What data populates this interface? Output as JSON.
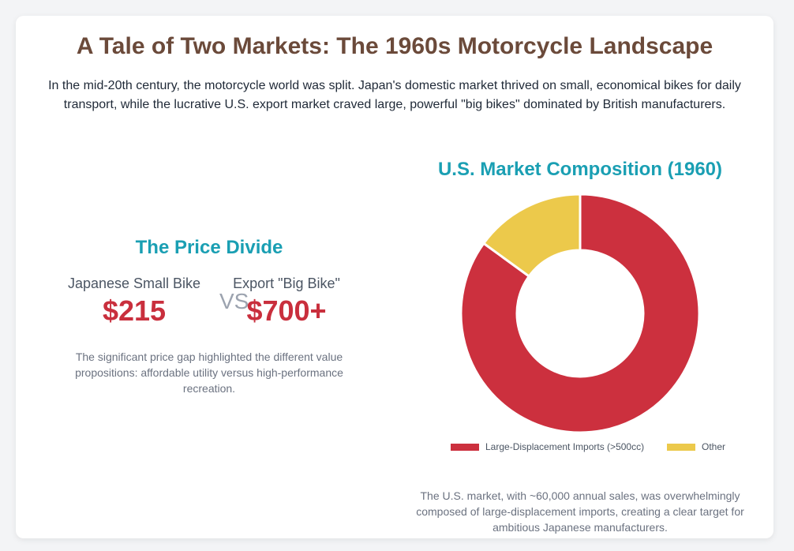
{
  "header": {
    "title": "A Tale of Two Markets: The 1960s Motorcycle Landscape",
    "intro": "In the mid-20th century, the motorcycle world was split. Japan's domestic market thrived on small, economical bikes for daily transport, while the lucrative U.S. export market craved large, powerful \"big bikes\" dominated by British manufacturers."
  },
  "price_divide": {
    "title": "The Price Divide",
    "left_label": "Japanese Small Bike",
    "left_value": "$215",
    "vs": "VS",
    "right_label": "Export \"Big Bike\"",
    "right_value": "$700+",
    "note": "The significant price gap highlighted the different value propositions: affordable utility versus high-performance recreation."
  },
  "market": {
    "note": "The U.S. market, with ~60,000 annual sales, was overwhelmingly composed of large-displacement imports, creating a clear target for ambitious Japanese manufacturers."
  },
  "colors": {
    "accent_title": "#1a9fb3",
    "headline": "#6b4a3a",
    "price": "#c92f3d"
  },
  "chart_data": {
    "type": "pie",
    "variant": "doughnut",
    "title": "U.S. Market Composition (1960)",
    "labels": [
      "Large-Displacement Imports (>500cc)",
      "Other"
    ],
    "values": [
      85,
      15
    ],
    "colors": [
      "#cc303e",
      "#ecc94b"
    ],
    "legend": "bottom"
  }
}
